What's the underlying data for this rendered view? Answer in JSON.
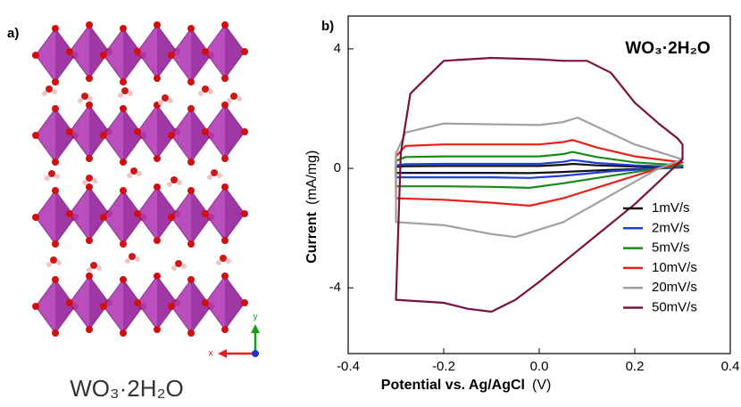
{
  "panel_a": {
    "label": "a)",
    "caption": "WO₃·2H₂O",
    "axis_y": "y",
    "axis_x": "x"
  },
  "chart_data": {
    "type": "line",
    "panel_label": "b)",
    "annotation": "WO₃·2H₂O",
    "x_label": "Potential vs. Ag/AgCl",
    "x_unit": "(V)",
    "y_label": "Current",
    "y_unit": "(mA/mg)",
    "xlim": [
      -0.4,
      0.4
    ],
    "ylim": [
      -6.2,
      5.1
    ],
    "xticks": [
      -0.4,
      -0.2,
      {
        "value": 0,
        "label": "0.0"
      },
      0.2,
      0.4
    ],
    "yticks": [
      -4,
      0,
      4
    ],
    "legend": "lower right",
    "grid": false,
    "series": [
      {
        "name": "1mV/s",
        "color": "#111111",
        "x": [
          -0.3,
          -0.3,
          -0.28,
          -0.2,
          0,
          0.05,
          0.07,
          0.12,
          0.2,
          0.3,
          0.25,
          0.15,
          0.05,
          -0.02,
          -0.1,
          -0.2,
          -0.3
        ],
        "values": [
          -0.15,
          0.05,
          0.07,
          0.08,
          0.08,
          0.12,
          0.15,
          0.1,
          0.06,
          0.03,
          0.0,
          -0.05,
          -0.12,
          -0.16,
          -0.15,
          -0.15,
          -0.15
        ]
      },
      {
        "name": "2mV/s",
        "color": "#1f3fdb",
        "x": [
          -0.3,
          -0.3,
          -0.28,
          -0.2,
          0,
          0.05,
          0.07,
          0.12,
          0.2,
          0.3,
          0.25,
          0.15,
          0.05,
          -0.02,
          -0.1,
          -0.2,
          -0.3
        ],
        "values": [
          -0.3,
          0.1,
          0.14,
          0.15,
          0.15,
          0.22,
          0.28,
          0.18,
          0.1,
          0.05,
          0.0,
          -0.1,
          -0.25,
          -0.32,
          -0.3,
          -0.3,
          -0.3
        ]
      },
      {
        "name": "5mV/s",
        "color": "#1a8a1a",
        "x": [
          -0.3,
          -0.3,
          -0.28,
          -0.2,
          0,
          0.05,
          0.07,
          0.12,
          0.2,
          0.3,
          0.25,
          0.15,
          0.05,
          -0.02,
          -0.1,
          -0.2,
          -0.3
        ],
        "values": [
          -0.6,
          0.25,
          0.38,
          0.4,
          0.4,
          0.48,
          0.55,
          0.38,
          0.2,
          0.1,
          0.0,
          -0.25,
          -0.5,
          -0.65,
          -0.62,
          -0.6,
          -0.6
        ]
      },
      {
        "name": "10mV/s",
        "color": "#e8201a",
        "x": [
          -0.3,
          -0.3,
          -0.28,
          -0.2,
          0,
          0.05,
          0.07,
          0.12,
          0.2,
          0.3,
          0.25,
          0.15,
          0.05,
          -0.02,
          -0.1,
          -0.2,
          -0.3
        ],
        "values": [
          -0.9,
          0.4,
          0.75,
          0.8,
          0.8,
          0.88,
          0.95,
          0.7,
          0.4,
          0.2,
          0.0,
          -0.5,
          -1.0,
          -1.25,
          -1.15,
          -1.05,
          -1.0
        ]
      },
      {
        "name": "20mV/s",
        "color": "#a0a0a0",
        "x": [
          -0.3,
          -0.3,
          -0.28,
          -0.2,
          0,
          0.05,
          0.08,
          0.12,
          0.2,
          0.3,
          0.25,
          0.15,
          0.05,
          -0.05,
          -0.1,
          -0.2,
          -0.3
        ],
        "values": [
          -1.7,
          0.5,
          1.2,
          1.5,
          1.45,
          1.55,
          1.7,
          1.4,
          0.8,
          0.3,
          0.0,
          -0.9,
          -1.8,
          -2.3,
          -2.2,
          -1.9,
          -1.8
        ]
      },
      {
        "name": "50mV/s",
        "color": "#7a1040",
        "x": [
          -0.3,
          -0.29,
          -0.27,
          -0.2,
          -0.1,
          0,
          0.05,
          0.1,
          0.15,
          0.2,
          0.25,
          0.29,
          0.3,
          0.3,
          0.28,
          0.2,
          0.1,
          0,
          -0.05,
          -0.1,
          -0.15,
          -0.2,
          -0.3
        ],
        "values": [
          -4.4,
          0.5,
          2.5,
          3.6,
          3.7,
          3.65,
          3.6,
          3.6,
          3.2,
          2.2,
          1.5,
          1.0,
          0.8,
          0.3,
          0.0,
          -1.2,
          -2.5,
          -3.8,
          -4.4,
          -4.8,
          -4.7,
          -4.5,
          -4.4
        ]
      }
    ]
  }
}
